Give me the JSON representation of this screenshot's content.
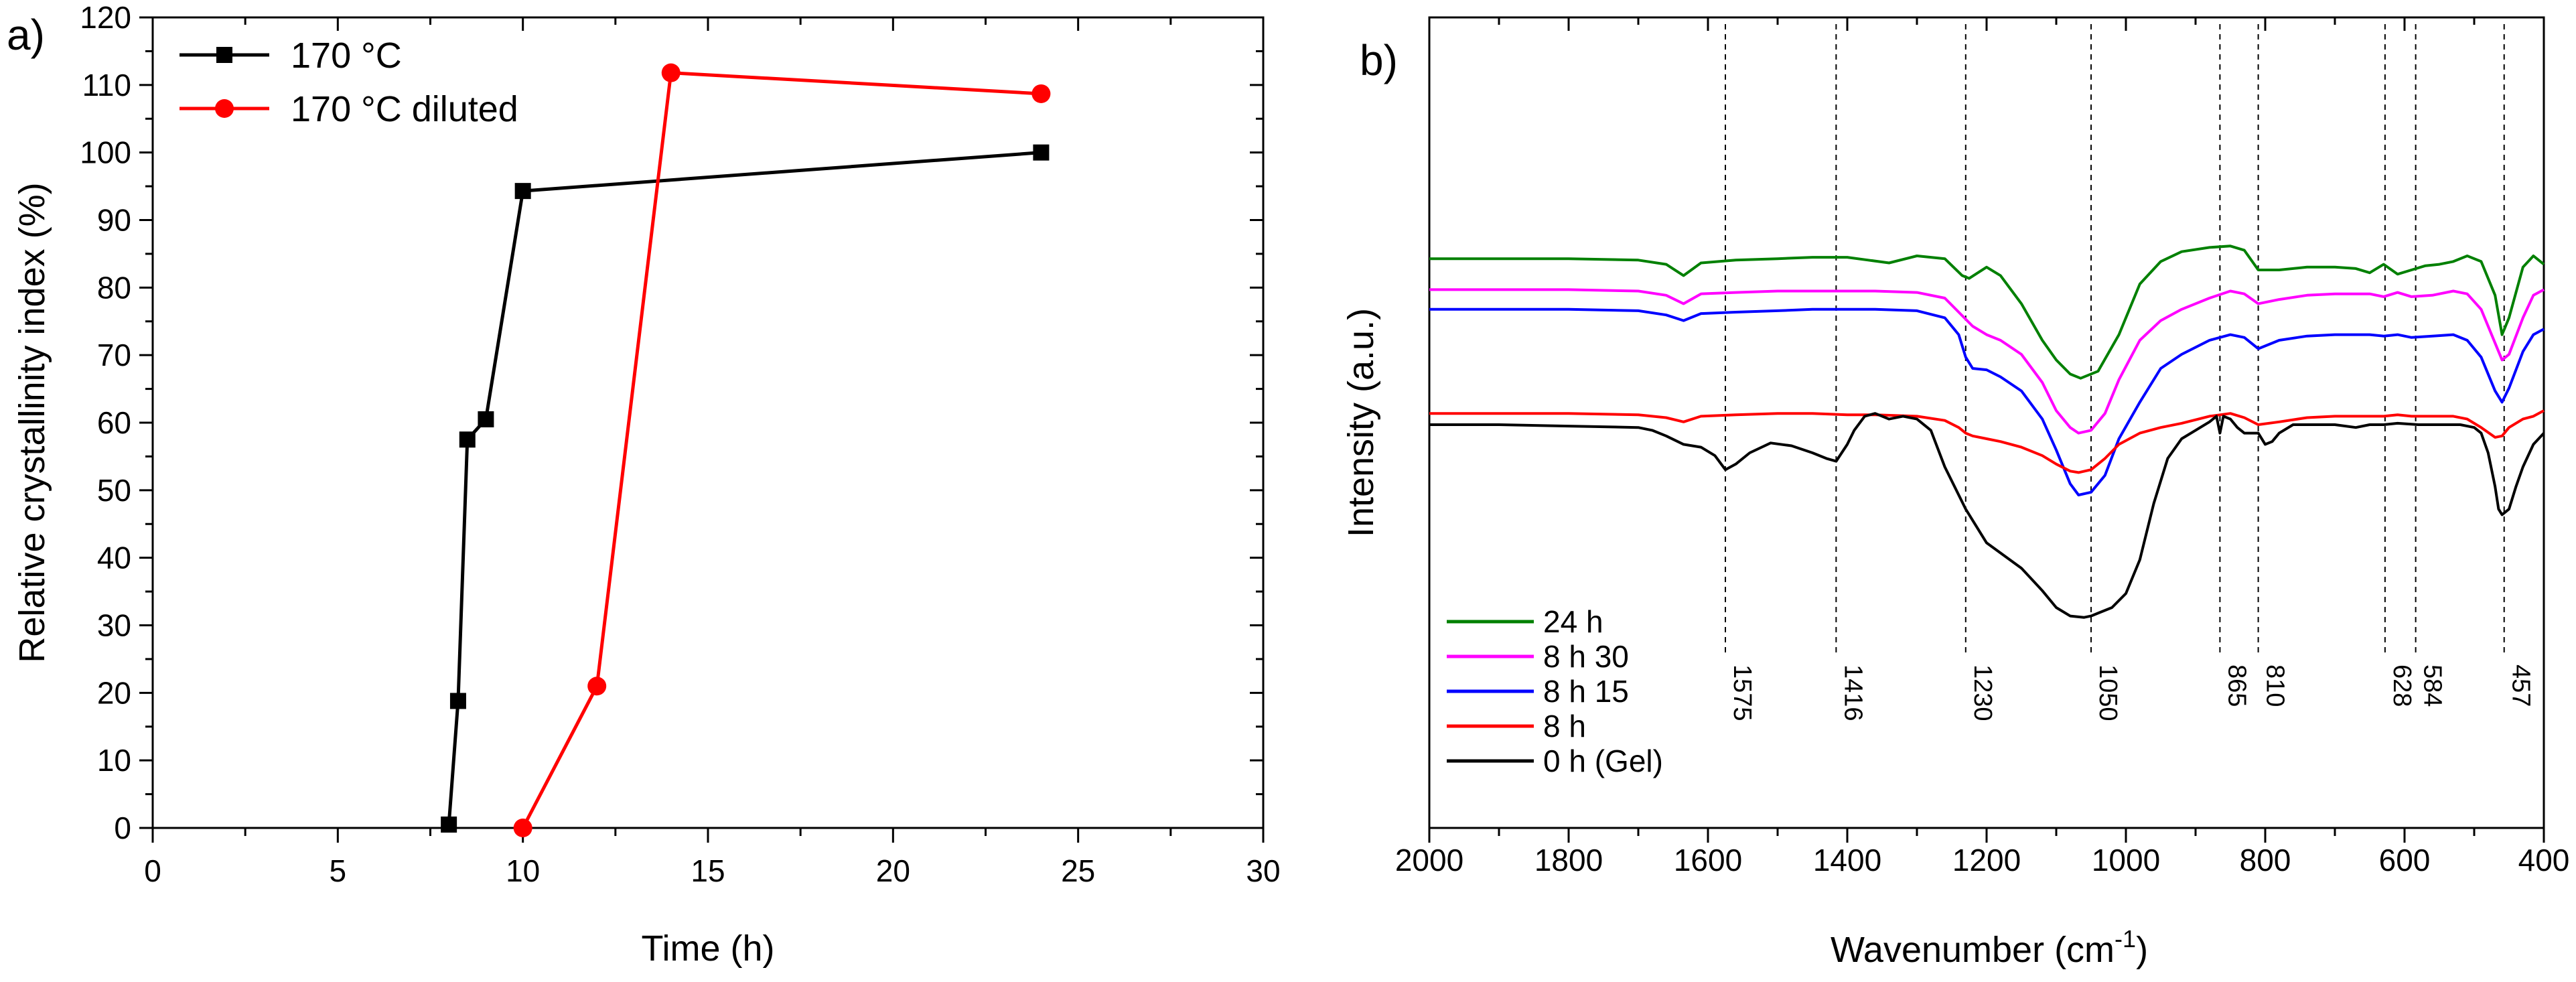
{
  "chart_data": [
    {
      "type": "line",
      "panel_label": "a)",
      "title": "",
      "xlabel": "Time (h)",
      "ylabel": "Relative crystallinity index (%)",
      "xlim": [
        0,
        30
      ],
      "ylim": [
        0,
        120
      ],
      "xticks": [
        "0",
        "5",
        "10",
        "15",
        "20",
        "25",
        "30"
      ],
      "yticks": [
        "0",
        "10",
        "20",
        "30",
        "40",
        "50",
        "60",
        "70",
        "80",
        "90",
        "100",
        "110",
        "120"
      ],
      "legend_position": "top-left",
      "series": [
        {
          "name": "170 °C",
          "color": "#000000",
          "marker": "square",
          "x": [
            8,
            8.25,
            8.5,
            9,
            10,
            24
          ],
          "y": [
            0.5,
            18.8,
            57.5,
            60.5,
            94.3,
            100
          ]
        },
        {
          "name": "170 °C diluted",
          "color": "#ff0000",
          "marker": "circle",
          "x": [
            10,
            12,
            14,
            24
          ],
          "y": [
            0,
            21,
            111.8,
            108.7
          ]
        }
      ]
    },
    {
      "type": "line",
      "panel_label": "b)",
      "title": "",
      "xlabel": "Wavenumber (cm",
      "xlabel_sup": "-1",
      "xlabel_close": ")",
      "ylabel": "Intensity (a.u.)",
      "xlim": [
        2000,
        400
      ],
      "x_reversed": true,
      "y_units": "arbitrary (offset spectra)",
      "xticks": [
        "2000",
        "1800",
        "1600",
        "1400",
        "1200",
        "1000",
        "800",
        "600",
        "400"
      ],
      "legend_position": "bottom-left",
      "reference_lines": [
        "1575",
        "1416",
        "1230",
        "1050",
        "865",
        "810",
        "628",
        "584",
        "457"
      ],
      "series": [
        {
          "name": "24 h",
          "color": "#008000",
          "x": [
            2000,
            1900,
            1800,
            1700,
            1660,
            1635,
            1610,
            1560,
            1500,
            1450,
            1420,
            1400,
            1370,
            1340,
            1300,
            1260,
            1235,
            1225,
            1200,
            1180,
            1150,
            1120,
            1100,
            1080,
            1065,
            1040,
            1010,
            980,
            950,
            920,
            880,
            850,
            830,
            810,
            780,
            740,
            700,
            670,
            650,
            630,
            610,
            590,
            570,
            550,
            530,
            510,
            490,
            470,
            460,
            450,
            430,
            415,
            400
          ],
          "y": [
            49,
            49,
            49,
            48.5,
            47,
            43,
            47.5,
            48.5,
            49,
            49.5,
            49.5,
            49.5,
            48.5,
            47.5,
            50,
            49,
            43,
            42,
            46,
            43,
            33,
            20,
            13,
            8,
            6.5,
            9,
            22,
            40,
            48,
            51.5,
            53,
            53.5,
            52,
            45,
            45,
            46,
            46,
            45.5,
            44,
            47,
            43.5,
            45,
            46.5,
            47,
            48,
            50,
            48,
            36,
            22,
            28,
            46,
            50,
            47
          ]
        },
        {
          "name": "8 h 30",
          "color": "#ff00ff",
          "x": [
            2000,
            1900,
            1800,
            1700,
            1660,
            1635,
            1610,
            1560,
            1500,
            1450,
            1400,
            1360,
            1300,
            1260,
            1240,
            1220,
            1200,
            1180,
            1150,
            1120,
            1100,
            1080,
            1068,
            1050,
            1030,
            1010,
            980,
            950,
            920,
            880,
            850,
            830,
            810,
            780,
            740,
            700,
            650,
            630,
            610,
            590,
            560,
            530,
            510,
            490,
            470,
            460,
            450,
            430,
            415,
            400
          ],
          "y": [
            38,
            38,
            38,
            37.5,
            36,
            33,
            36.5,
            37,
            37.5,
            37.5,
            37.5,
            37.5,
            37,
            35,
            30,
            25,
            22,
            20,
            15,
            5,
            -5,
            -11,
            -13,
            -12,
            -6,
            6,
            20,
            27,
            31,
            35,
            37.5,
            36.5,
            33,
            34.5,
            36,
            36.5,
            36.5,
            35.5,
            37,
            35.5,
            36,
            37.5,
            36.5,
            31,
            19,
            13,
            15,
            28,
            36,
            38
          ]
        },
        {
          "name": "8 h 15",
          "color": "#0000ff",
          "x": [
            2000,
            1900,
            1800,
            1700,
            1660,
            1635,
            1610,
            1560,
            1500,
            1450,
            1400,
            1360,
            1300,
            1260,
            1240,
            1230,
            1220,
            1200,
            1180,
            1150,
            1120,
            1100,
            1080,
            1068,
            1050,
            1030,
            1010,
            980,
            950,
            920,
            880,
            850,
            830,
            810,
            780,
            740,
            700,
            650,
            630,
            610,
            590,
            560,
            530,
            510,
            490,
            470,
            460,
            450,
            430,
            415,
            400
          ],
          "y": [
            31,
            31,
            31,
            30.5,
            29,
            27,
            29.5,
            30,
            30.5,
            31,
            31,
            31,
            30.5,
            28,
            22,
            14,
            10,
            9.5,
            7,
            2,
            -8,
            -19,
            -31,
            -35,
            -34,
            -28,
            -15,
            -2,
            10,
            15,
            20,
            22,
            21,
            17,
            20,
            21.5,
            22,
            22,
            21.5,
            22,
            21,
            21.5,
            22,
            20,
            14,
            2,
            -2,
            3,
            16,
            22,
            24
          ]
        },
        {
          "name": "8 h",
          "color": "#ff0000",
          "x": [
            2000,
            1900,
            1800,
            1700,
            1660,
            1635,
            1610,
            1560,
            1500,
            1450,
            1400,
            1360,
            1300,
            1260,
            1240,
            1230,
            1220,
            1200,
            1180,
            1150,
            1120,
            1100,
            1080,
            1068,
            1050,
            1030,
            1010,
            980,
            950,
            920,
            880,
            850,
            830,
            810,
            780,
            740,
            700,
            650,
            630,
            610,
            590,
            560,
            530,
            510,
            490,
            470,
            460,
            450,
            430,
            415,
            400
          ],
          "y": [
            -6,
            -6,
            -6,
            -6.5,
            -7.5,
            -9,
            -7,
            -6.5,
            -6,
            -6,
            -6.5,
            -6.5,
            -7,
            -8.5,
            -11,
            -13,
            -14,
            -15,
            -16,
            -18,
            -21,
            -24,
            -26.5,
            -27,
            -26,
            -22,
            -17,
            -13,
            -11,
            -9.5,
            -7,
            -6,
            -7.5,
            -10,
            -9,
            -7.5,
            -7,
            -7,
            -7,
            -6.5,
            -7,
            -7,
            -7,
            -8,
            -11,
            -14.5,
            -14,
            -11,
            -8,
            -7,
            -5
          ]
        },
        {
          "name": "0 h (Gel)",
          "color": "#000000",
          "x": [
            2000,
            1900,
            1800,
            1700,
            1680,
            1660,
            1635,
            1610,
            1590,
            1575,
            1560,
            1540,
            1510,
            1480,
            1450,
            1430,
            1416,
            1400,
            1390,
            1375,
            1360,
            1340,
            1320,
            1300,
            1280,
            1260,
            1240,
            1230,
            1200,
            1150,
            1120,
            1100,
            1080,
            1060,
            1050,
            1040,
            1020,
            1000,
            980,
            960,
            940,
            920,
            900,
            880,
            870,
            865,
            860,
            850,
            840,
            830,
            810,
            800,
            790,
            780,
            760,
            740,
            700,
            670,
            650,
            630,
            610,
            580,
            560,
            540,
            520,
            510,
            500,
            490,
            480,
            470,
            465,
            460,
            450,
            440,
            430,
            415,
            400
          ],
          "y": [
            -10,
            -10,
            -10.5,
            -11,
            -12,
            -14,
            -17,
            -18,
            -21,
            -26,
            -24,
            -20,
            -16.5,
            -17.5,
            -20,
            -22,
            -23,
            -17,
            -12,
            -7,
            -6,
            -8,
            -7,
            -8,
            -12,
            -25,
            -35,
            -40,
            -52,
            -61,
            -69,
            -75,
            -78,
            -78.5,
            -78,
            -77,
            -75,
            -70,
            -58,
            -38,
            -22,
            -15,
            -12,
            -9,
            -7,
            -13,
            -7,
            -8,
            -11,
            -13,
            -13,
            -17,
            -16,
            -13,
            -10,
            -10,
            -10,
            -11,
            -10,
            -10,
            -9.5,
            -10,
            -10,
            -10,
            -10,
            -10.5,
            -11,
            -13,
            -20,
            -32,
            -40,
            -42,
            -40,
            -32,
            -25,
            -17,
            -13
          ]
        }
      ]
    }
  ]
}
